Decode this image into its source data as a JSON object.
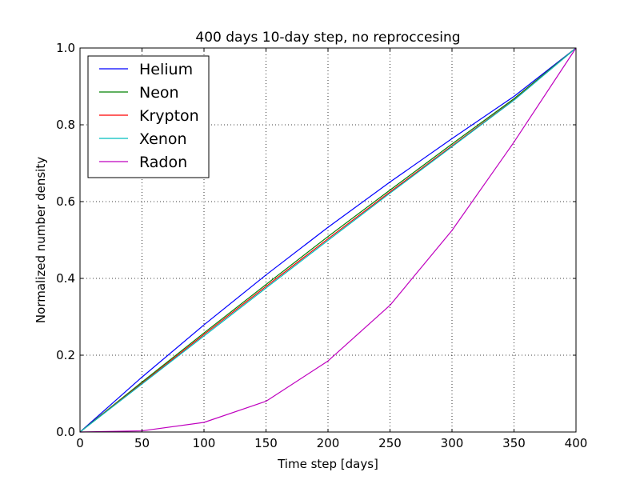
{
  "chart_data": {
    "type": "line",
    "title": "400 days 10-day step, no reproccesing",
    "xlabel": "Time step [days]",
    "ylabel": "Normalized number density",
    "xlim": [
      0,
      400
    ],
    "ylim": [
      0,
      1.0
    ],
    "xticks": [
      0,
      50,
      100,
      150,
      200,
      250,
      300,
      350,
      400
    ],
    "xtick_labels": [
      "0",
      "50",
      "100",
      "150",
      "200",
      "250",
      "300",
      "350",
      "400"
    ],
    "yticks": [
      0,
      0.2,
      0.4,
      0.6,
      0.8,
      1.0
    ],
    "ytick_labels": [
      "0.0",
      "0.2",
      "0.4",
      "0.6",
      "0.8",
      "1.0"
    ],
    "grid": true,
    "legend_position": "top-left",
    "x": [
      0,
      50,
      100,
      150,
      200,
      250,
      300,
      350,
      400
    ],
    "series": [
      {
        "name": "Helium",
        "color": "#0000ff",
        "values": [
          0,
          0.143,
          0.279,
          0.409,
          0.533,
          0.651,
          0.764,
          0.874,
          1.0
        ]
      },
      {
        "name": "Neon",
        "color": "#008000",
        "values": [
          0,
          0.13,
          0.258,
          0.384,
          0.509,
          0.63,
          0.75,
          0.868,
          1.0
        ]
      },
      {
        "name": "Krypton",
        "color": "#ff0000",
        "values": [
          0,
          0.127,
          0.254,
          0.379,
          0.503,
          0.625,
          0.745,
          0.865,
          1.0
        ]
      },
      {
        "name": "Xenon",
        "color": "#00bfbf",
        "values": [
          0,
          0.125,
          0.25,
          0.375,
          0.499,
          0.622,
          0.743,
          0.864,
          1.0
        ]
      },
      {
        "name": "Radon",
        "color": "#bf00bf",
        "values": [
          0,
          0.003,
          0.025,
          0.08,
          0.185,
          0.33,
          0.525,
          0.755,
          1.0
        ]
      }
    ]
  }
}
